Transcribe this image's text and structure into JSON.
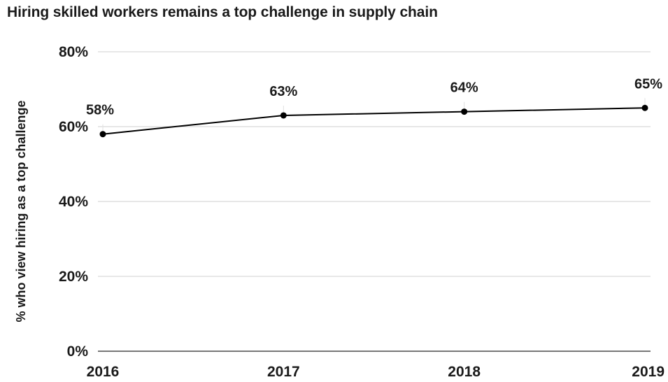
{
  "chart_data": {
    "type": "line",
    "title": "Hiring skilled workers remains a top challenge in supply chain",
    "xlabel": "",
    "ylabel": "% who view hiring as a top challenge",
    "categories": [
      "2016",
      "2017",
      "2018",
      "2019"
    ],
    "series": [
      {
        "values": [
          58,
          63,
          64,
          65
        ],
        "labels": [
          "58%",
          "63%",
          "64%",
          "65%"
        ],
        "color": "#000000"
      }
    ],
    "ylim": [
      0,
      80
    ],
    "yticks": [
      0,
      20,
      40,
      60,
      80
    ],
    "ytick_labels": [
      "0%",
      "20%",
      "40%",
      "60%",
      "80%"
    ],
    "grid": true,
    "legend": "none"
  }
}
